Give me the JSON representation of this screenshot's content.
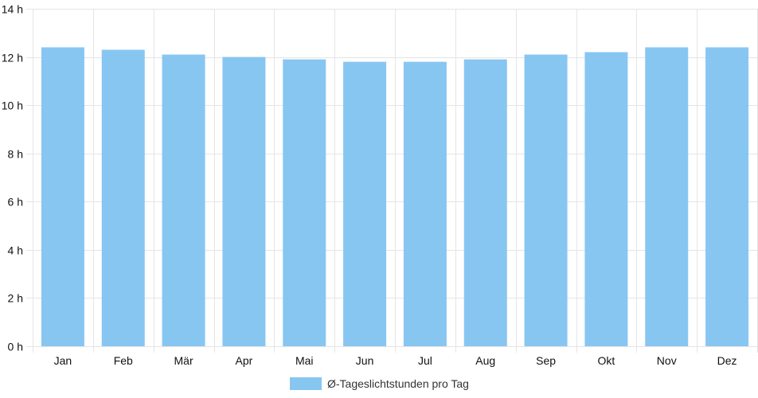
{
  "chart_data": {
    "type": "bar",
    "categories": [
      "Jan",
      "Feb",
      "Mär",
      "Apr",
      "Mai",
      "Jun",
      "Jul",
      "Aug",
      "Sep",
      "Okt",
      "Nov",
      "Dez"
    ],
    "series": [
      {
        "name": "Ø-Tageslichtstunden pro Tag",
        "values": [
          12.4,
          12.3,
          12.1,
          12.0,
          11.9,
          11.8,
          11.8,
          11.9,
          12.1,
          12.2,
          12.4,
          12.4
        ]
      }
    ],
    "yticks": [
      "0 h",
      "2 h",
      "4 h",
      "6 h",
      "8 h",
      "10 h",
      "12 h",
      "14 h"
    ],
    "ylim": [
      0,
      14
    ],
    "grid": true,
    "legend": "bottom-center",
    "bar_color": "#88c6f2",
    "grid_color": "#e5e5e5"
  }
}
